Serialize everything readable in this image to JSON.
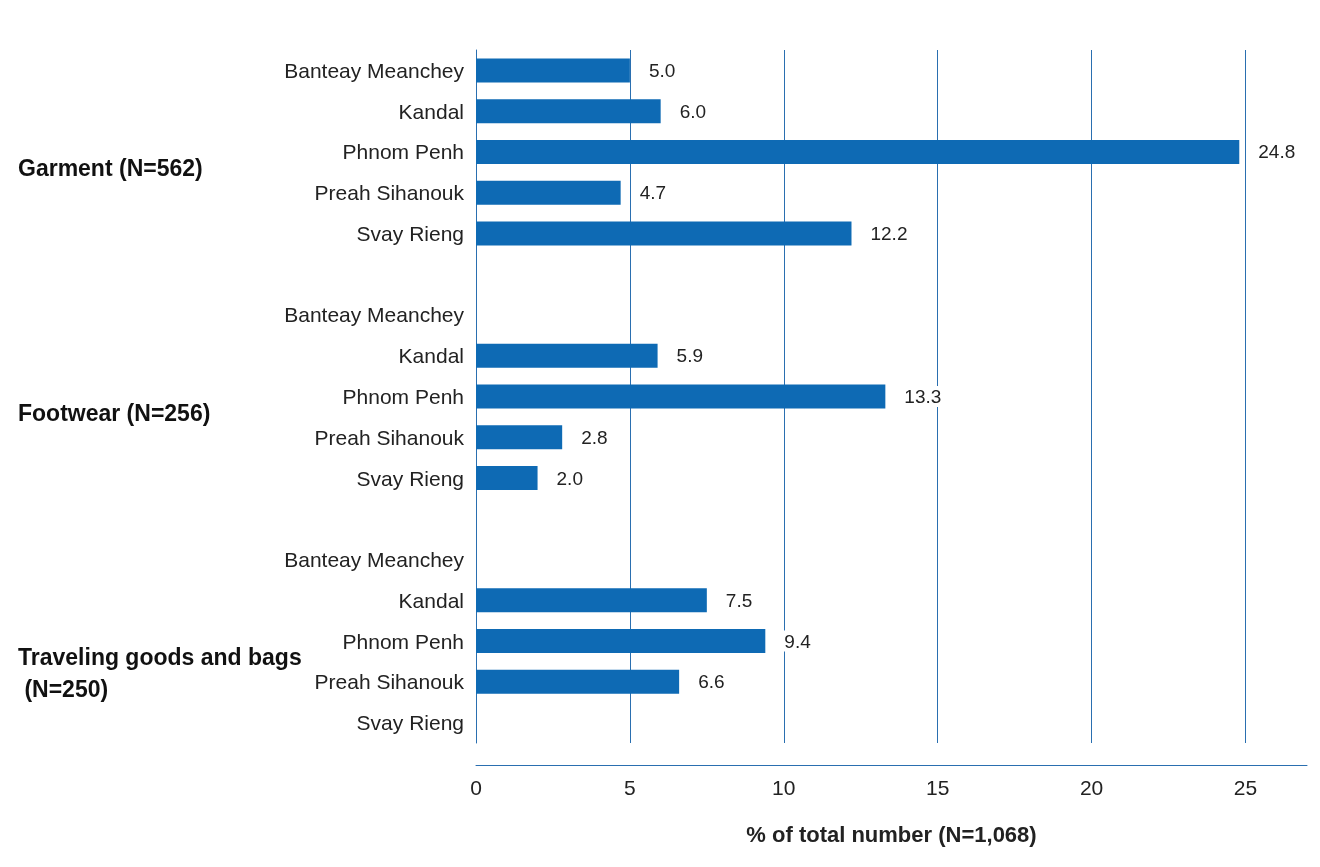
{
  "chart_data": {
    "type": "bar",
    "orientation": "horizontal",
    "xlabel": "% of total number (N=1,068)",
    "categories": [
      "Banteay Meanchey",
      "Kandal",
      "Phnom Penh",
      "Preah Sihanouk",
      "Svay Rieng",
      null,
      "Banteay Meanchey",
      "Kandal",
      "Phnom Penh",
      "Preah Sihanouk",
      "Svay Rieng",
      null,
      "Banteay Meanchey",
      "Kandal",
      "Phnom Penh",
      "Preah Sihanouk",
      "Svay Rieng"
    ],
    "values": [
      5.0,
      6.0,
      24.8,
      4.7,
      12.2,
      null,
      null,
      5.9,
      13.3,
      2.8,
      2.0,
      null,
      null,
      7.5,
      9.4,
      6.6,
      null
    ],
    "value_labels": [
      "5.0",
      "6.0",
      "24.8",
      "4.7",
      "12.2",
      null,
      null,
      "5.9",
      "13.3",
      "2.8",
      "2.0",
      null,
      null,
      "7.5",
      "9.4",
      "6.6",
      null
    ],
    "color": "#0e6ab4",
    "annotations": [
      "Garment (N=562)",
      "Footwear (N=256)",
      "Traveling goods and bags (N=250)"
    ],
    "xlim": [
      0,
      27
    ],
    "xticks": [
      0,
      5,
      10,
      15,
      20,
      25
    ],
    "grid": "x"
  }
}
